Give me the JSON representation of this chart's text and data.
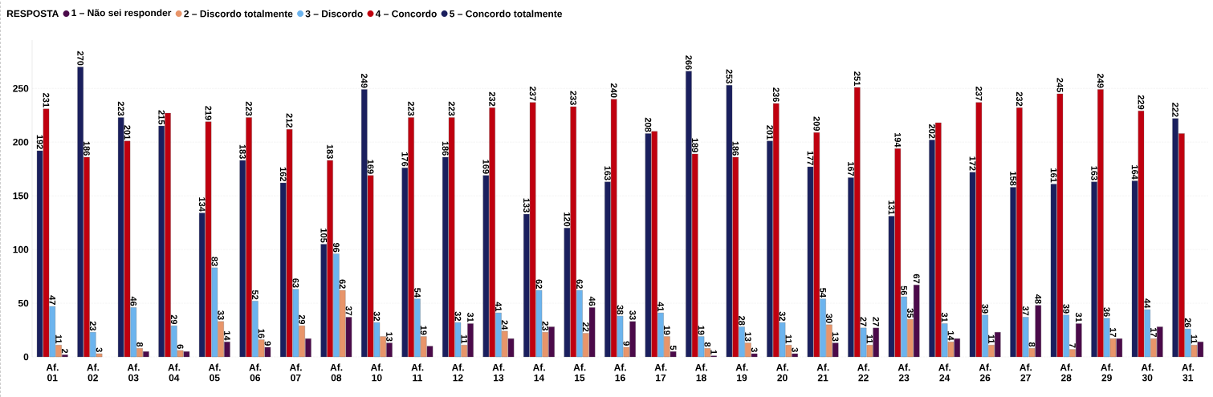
{
  "chart_data": {
    "type": "bar",
    "legend_title": "RESPOSTA",
    "categories": [
      "Af. 01",
      "Af. 02",
      "Af. 03",
      "Af. 04",
      "Af. 05",
      "Af. 06",
      "Af. 07",
      "Af. 08",
      "Af. 10",
      "Af. 11",
      "Af. 12",
      "Af. 13",
      "Af. 14",
      "Af. 15",
      "Af. 16",
      "Af. 17",
      "Af. 18",
      "Af. 19",
      "Af. 20",
      "Af. 21",
      "Af. 22",
      "Af. 23",
      "Af. 24",
      "Af. 26",
      "Af. 27",
      "Af. 28",
      "Af. 29",
      "Af. 30",
      "Af. 31"
    ],
    "series": [
      {
        "name": "1 – Não sei responder",
        "color": "#4b0a4a",
        "values": [
          2,
          null,
          5,
          5,
          14,
          9,
          17,
          37,
          13,
          10,
          31,
          17,
          28,
          46,
          33,
          5,
          1,
          3,
          3,
          13,
          27,
          67,
          17,
          23,
          48,
          31,
          17,
          28,
          14
        ],
        "value_labels": [
          "2",
          null,
          null,
          null,
          "14",
          "9",
          null,
          "37",
          "13",
          null,
          "31",
          null,
          null,
          "46",
          "33",
          "5",
          "1",
          "3",
          "3",
          "13",
          "27",
          "67",
          null,
          null,
          "48",
          "31",
          null,
          null,
          null
        ]
      },
      {
        "name": "2 – Discordo totalmente",
        "color": "#e8956a",
        "values": [
          11,
          3,
          8,
          6,
          33,
          16,
          29,
          62,
          19,
          19,
          11,
          24,
          23,
          22,
          9,
          19,
          8,
          13,
          11,
          30,
          11,
          35,
          14,
          11,
          8,
          7,
          17,
          17,
          11
        ],
        "value_labels": [
          "11",
          "3",
          "8",
          "6",
          "33",
          "16",
          "29",
          "62",
          null,
          "19",
          "11",
          "24",
          "23",
          "22",
          "9",
          "19",
          "8",
          "13",
          "11",
          "30",
          "11",
          "35",
          "14",
          "11",
          "8",
          "7",
          "17",
          "17",
          "11"
        ]
      },
      {
        "name": "3 – Discordo",
        "color": "#6cb4ee",
        "values": [
          47,
          23,
          46,
          29,
          83,
          52,
          63,
          96,
          32,
          54,
          32,
          41,
          62,
          62,
          38,
          41,
          19,
          28,
          32,
          54,
          27,
          56,
          31,
          39,
          37,
          39,
          36,
          44,
          26
        ],
        "value_labels": [
          "47",
          "23",
          "46",
          "29",
          "83",
          "52",
          "63",
          "96",
          "32",
          "54",
          "32",
          "41",
          "62",
          "62",
          "38",
          "41",
          "19",
          "28",
          "32",
          "54",
          "27",
          "56",
          "31",
          "39",
          "37",
          "39",
          "36",
          "44",
          "26"
        ]
      },
      {
        "name": "4 – Concordo",
        "color": "#c0000f",
        "values": [
          231,
          186,
          201,
          227,
          219,
          223,
          212,
          183,
          169,
          223,
          223,
          232,
          237,
          233,
          240,
          210,
          189,
          186,
          236,
          209,
          251,
          194,
          218,
          237,
          232,
          245,
          249,
          229,
          208
        ],
        "value_labels": [
          "231",
          "186",
          "201",
          null,
          "219",
          "223",
          "212",
          "183",
          "169",
          "223",
          "223",
          "232",
          "237",
          "233",
          "240",
          null,
          "189",
          "186",
          "236",
          "209",
          "251",
          "194",
          null,
          "237",
          "232",
          "245",
          "249",
          "229",
          null
        ]
      },
      {
        "name": "5 – Concordo totalmente",
        "color": "#1a1f5e",
        "values": [
          192,
          270,
          223,
          215,
          134,
          183,
          162,
          105,
          249,
          176,
          186,
          169,
          133,
          120,
          163,
          208,
          266,
          253,
          201,
          177,
          167,
          131,
          202,
          172,
          158,
          161,
          163,
          164,
          222
        ],
        "value_labels": [
          "192",
          "270",
          "223",
          "215",
          "134",
          "183",
          "162",
          "105",
          "249",
          "176",
          "186",
          "169",
          "133",
          "120",
          "163",
          "208",
          "266",
          "253",
          "201",
          "177",
          "167",
          "131",
          "202",
          "172",
          "158",
          "161",
          "163",
          "164",
          "222"
        ]
      }
    ],
    "ylim": [
      0,
      295
    ],
    "yticks": [
      0,
      50,
      100,
      150,
      200,
      250
    ],
    "grid": "y",
    "legend": "top left"
  }
}
